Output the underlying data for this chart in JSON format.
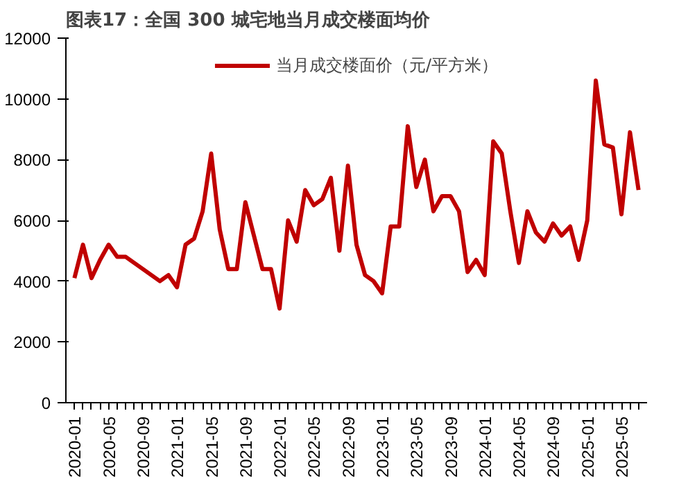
{
  "chart_data": {
    "type": "line",
    "title": "图表17：全国 300 城宅地当月成交楼面均价",
    "x": [
      "2020-01",
      "2020-02",
      "2020-03",
      "2020-04",
      "2020-05",
      "2020-06",
      "2020-07",
      "2020-08",
      "2020-09",
      "2020-10",
      "2020-11",
      "2020-12",
      "2021-01",
      "2021-02",
      "2021-03",
      "2021-04",
      "2021-05",
      "2021-06",
      "2021-07",
      "2021-08",
      "2021-09",
      "2021-10",
      "2021-11",
      "2021-12",
      "2022-01",
      "2022-02",
      "2022-03",
      "2022-04",
      "2022-05",
      "2022-06",
      "2022-07",
      "2022-08",
      "2022-09",
      "2022-10",
      "2022-11",
      "2022-12",
      "2023-01",
      "2023-02",
      "2023-03",
      "2023-04",
      "2023-05",
      "2023-06",
      "2023-07",
      "2023-08",
      "2023-09",
      "2023-10",
      "2023-11",
      "2023-12",
      "2024-01",
      "2024-02",
      "2024-03",
      "2024-04",
      "2024-05",
      "2024-06",
      "2024-07",
      "2024-08",
      "2024-09",
      "2024-10",
      "2024-11",
      "2024-12",
      "2025-01",
      "2025-02",
      "2025-03",
      "2025-04",
      "2025-05",
      "2025-06",
      "2025-07"
    ],
    "series": [
      {
        "name": "当月成交楼面价（元/平方米）",
        "color": "#c00000",
        "values": [
          4100,
          5200,
          4100,
          4700,
          5200,
          4800,
          4800,
          4600,
          4400,
          4200,
          4000,
          4200,
          3800,
          5200,
          5400,
          6300,
          8200,
          5700,
          4400,
          4400,
          6600,
          5500,
          4400,
          4400,
          3100,
          6000,
          5300,
          7000,
          6500,
          6700,
          7400,
          5000,
          7800,
          5200,
          4200,
          4000,
          3600,
          5800,
          5800,
          9100,
          7100,
          8000,
          6300,
          6800,
          6800,
          6300,
          4300,
          4700,
          4200,
          8600,
          8200,
          6300,
          4600,
          6300,
          5600,
          5300,
          5900,
          5500,
          5800,
          4700,
          6000,
          10600,
          8500,
          8400,
          6200,
          8900,
          7000
        ]
      }
    ],
    "xlim": [
      "2019-12",
      "2025-08"
    ],
    "xticks": [
      "2020-01",
      "2020-05",
      "2020-09",
      "2021-01",
      "2021-05",
      "2021-09",
      "2022-01",
      "2022-05",
      "2022-09",
      "2023-01",
      "2023-05",
      "2023-09",
      "2024-01",
      "2024-05",
      "2024-09",
      "2025-01",
      "2025-05"
    ],
    "ylim": [
      0,
      12000
    ],
    "yticks": [
      0,
      2000,
      4000,
      6000,
      8000,
      10000,
      12000
    ],
    "grid": false,
    "legend": "top",
    "line_style": "solid",
    "marker": "none"
  }
}
